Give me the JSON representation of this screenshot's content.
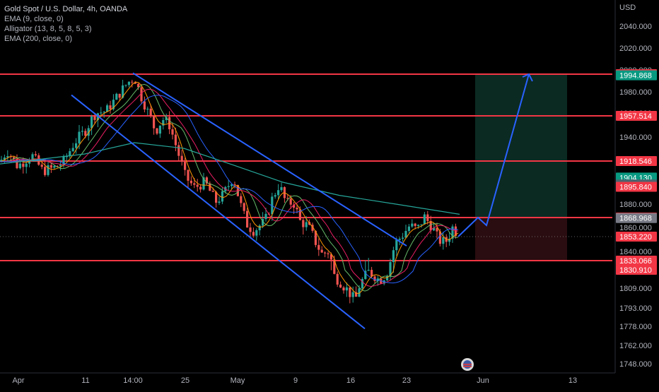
{
  "header": {
    "title": "Gold Spot / U.S. Dollar, 4h, OANDA",
    "indicators": [
      "EMA (9, close, 0)",
      "Alligator (13, 8, 5, 8, 5, 3)",
      "EMA (200, close, 0)"
    ]
  },
  "colors": {
    "background": "#000000",
    "bull": "#26a69a",
    "bear": "#ef5350",
    "hline": "#f23645",
    "channel": "#2962ff",
    "target_zone": "#0b2a22",
    "stop_zone": "#2a0d10",
    "ema200": "#26a69a",
    "alligator_jaw": "#2962ff",
    "alligator_teeth": "#e91e63",
    "alligator_lips": "#66bb6a",
    "ema9": "#ff9800"
  },
  "chart_data": {
    "type": "candlestick",
    "currency": "USD",
    "x_ticks": [
      "Apr",
      "11",
      "14:00",
      "25",
      "May",
      "9",
      "16",
      "23",
      "Jun",
      "13"
    ],
    "y_ticks": [
      2040.0,
      2020.0,
      2000.0,
      1980.0,
      1960.0,
      1940.0,
      1920.0,
      1900.0,
      1880.0,
      1860.0,
      1840.0,
      1809.0,
      1793.0,
      1778.0,
      1762.0,
      1748.0
    ],
    "horizontal_levels": [
      1995.927,
      1957.514,
      1918.546,
      1869.462,
      1833.066
    ],
    "price_labels": [
      {
        "value": 1995.927,
        "text": "1995.927",
        "color": "#f23645"
      },
      {
        "value": 1994.868,
        "text": "1994.868",
        "color": "#089981"
      },
      {
        "value": 1957.514,
        "text": "1957.514",
        "color": "#f23645"
      },
      {
        "value": 1918.546,
        "text": "1918.546",
        "color": "#f23645"
      },
      {
        "value": 1904.13,
        "text": "1904.130",
        "color": "#089981"
      },
      {
        "value": 1898.012,
        "text": "1898.012",
        "color": "#4a6670"
      },
      {
        "value": 1895.84,
        "text": "1895.840",
        "color": "#f23645"
      },
      {
        "value": 1869.462,
        "text": "1869.462",
        "color": "#f23645"
      },
      {
        "value": 1868.968,
        "text": "1868.968",
        "color": "#787b86"
      },
      {
        "value": 1853.22,
        "text": "1853.220",
        "color": "#f23645"
      },
      {
        "value": 1833.066,
        "text": "1833.066",
        "color": "#f23645"
      },
      {
        "value": 1830.91,
        "text": "1830.910",
        "color": "#f23645"
      }
    ],
    "last_price": 1853.22,
    "channel_upper": [
      [
        "14:00",
        1997
      ],
      [
        "23",
        1845
      ]
    ],
    "channel_lower": [
      [
        "11",
        1977
      ],
      [
        "16",
        1776
      ]
    ],
    "projection": [
      1853.22,
      1869.462,
      1862,
      1995.927
    ],
    "position": {
      "target": 1995.927,
      "entry": 1869.462,
      "stop": 1833.066
    }
  }
}
